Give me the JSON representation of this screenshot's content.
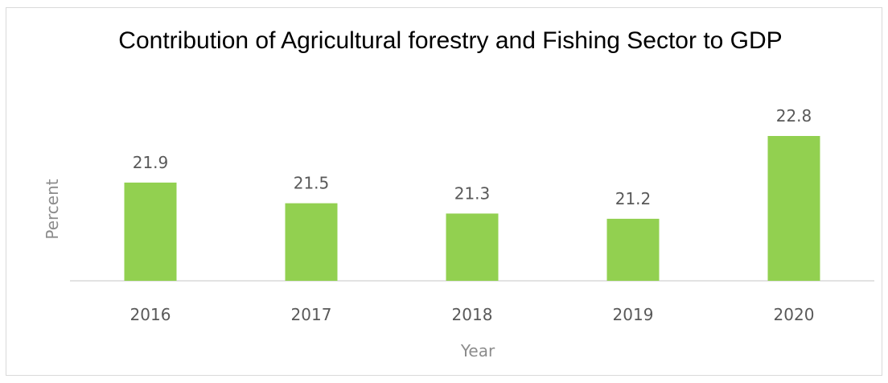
{
  "chart_data": {
    "type": "bar",
    "title": "Contribution of Agricultural forestry and Fishing Sector to GDP",
    "xlabel": "Year",
    "ylabel": "Percent",
    "categories": [
      "2016",
      "2017",
      "2018",
      "2019",
      "2020"
    ],
    "values": [
      21.9,
      21.5,
      21.3,
      21.2,
      22.8
    ],
    "ylim": [
      20,
      23
    ],
    "grid": false,
    "legend": "none",
    "bar_color": "#92d050"
  }
}
